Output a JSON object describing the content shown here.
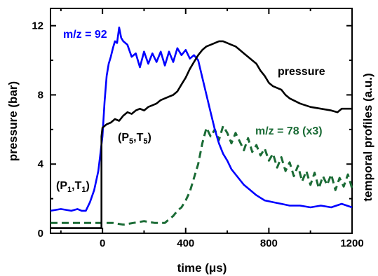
{
  "chart_data": {
    "type": "line",
    "xlabel": "time (μs)",
    "ylabel": "pressure (bar)",
    "y2label": "temporal profiles (a.u.)",
    "xlim": [
      -250,
      1200
    ],
    "ylim": [
      0,
      13
    ],
    "x_ticks": [
      0,
      400,
      800,
      1200
    ],
    "y_ticks": [
      0,
      4,
      8,
      12
    ],
    "grid": false,
    "series": [
      {
        "name": "m/z = 92",
        "color": "#0000ff",
        "style": "solid",
        "x": [
          -250,
          -200,
          -150,
          -120,
          -100,
          -80,
          -60,
          -40,
          -20,
          0,
          10,
          20,
          30,
          40,
          50,
          60,
          70,
          80,
          90,
          100,
          120,
          140,
          160,
          180,
          200,
          220,
          240,
          260,
          280,
          300,
          320,
          340,
          360,
          380,
          400,
          420,
          440,
          460,
          480,
          500,
          520,
          540,
          560,
          580,
          600,
          620,
          640,
          660,
          680,
          700,
          740,
          780,
          820,
          860,
          900,
          950,
          1000,
          1050,
          1100,
          1150,
          1200
        ],
        "y": [
          1.3,
          1.4,
          1.3,
          1.4,
          1.3,
          1.3,
          1.8,
          2.5,
          3.6,
          5.6,
          7.6,
          9.1,
          9.8,
          10.2,
          10.7,
          11.1,
          11.0,
          11.9,
          11.3,
          11.1,
          10.9,
          10.2,
          10.4,
          9.6,
          10.5,
          9.8,
          10.4,
          9.9,
          10.5,
          9.7,
          10.5,
          9.9,
          10.7,
          10.3,
          10.6,
          10.1,
          10.3,
          10.0,
          9.0,
          8.0,
          7.0,
          6.0,
          5.2,
          4.6,
          4.2,
          3.7,
          3.4,
          3.1,
          2.8,
          2.6,
          2.2,
          1.9,
          1.8,
          1.7,
          1.6,
          1.6,
          1.5,
          1.6,
          1.5,
          1.7,
          1.5
        ]
      },
      {
        "name": "pressure",
        "color": "#000000",
        "style": "solid",
        "x": [
          -250,
          -5,
          -5,
          0,
          20,
          40,
          60,
          80,
          100,
          120,
          140,
          160,
          180,
          200,
          220,
          240,
          260,
          280,
          300,
          320,
          340,
          360,
          380,
          400,
          420,
          440,
          460,
          480,
          500,
          520,
          540,
          560,
          580,
          600,
          620,
          640,
          660,
          680,
          700,
          720,
          740,
          760,
          780,
          800,
          820,
          840,
          860,
          880,
          900,
          950,
          1000,
          1050,
          1100,
          1130,
          1150,
          1180,
          1200
        ],
        "y": [
          0.3,
          0.3,
          5.6,
          6.1,
          6.3,
          6.4,
          6.6,
          6.5,
          6.8,
          7.0,
          6.9,
          7.1,
          7.2,
          7.1,
          7.3,
          7.4,
          7.5,
          7.7,
          7.8,
          7.9,
          8.0,
          8.2,
          8.6,
          9.0,
          9.5,
          9.9,
          10.3,
          10.6,
          10.8,
          10.9,
          11.0,
          11.1,
          11.1,
          11.0,
          10.9,
          10.8,
          10.6,
          10.4,
          10.2,
          10.0,
          9.8,
          9.4,
          9.1,
          8.7,
          8.5,
          8.4,
          8.3,
          8.0,
          7.8,
          7.5,
          7.3,
          7.2,
          7.1,
          7.0,
          7.2,
          7.2,
          7.2
        ]
      },
      {
        "name": "m/z = 78 (x3)",
        "color": "#1a6b35",
        "style": "dashed",
        "x": [
          -250,
          -150,
          -50,
          0,
          50,
          100,
          150,
          200,
          250,
          300,
          320,
          340,
          360,
          380,
          400,
          420,
          440,
          460,
          480,
          500,
          520,
          540,
          560,
          580,
          600,
          620,
          640,
          660,
          680,
          700,
          720,
          740,
          760,
          780,
          800,
          820,
          840,
          860,
          880,
          900,
          920,
          940,
          960,
          980,
          1000,
          1020,
          1040,
          1060,
          1080,
          1100,
          1120,
          1140,
          1160,
          1180,
          1200
        ],
        "y": [
          0.6,
          0.6,
          0.6,
          0.6,
          0.6,
          0.5,
          0.6,
          0.7,
          0.6,
          0.6,
          0.8,
          1.0,
          1.3,
          1.5,
          1.9,
          2.4,
          3.2,
          4.0,
          5.2,
          6.1,
          5.6,
          6.0,
          5.4,
          6.2,
          5.8,
          5.2,
          5.8,
          5.3,
          4.8,
          5.5,
          4.7,
          5.1,
          4.5,
          4.9,
          4.2,
          4.6,
          3.8,
          4.4,
          3.6,
          4.1,
          3.3,
          3.9,
          3.0,
          3.6,
          2.8,
          3.5,
          2.6,
          3.3,
          2.8,
          3.4,
          2.5,
          3.2,
          2.7,
          3.4,
          2.6
        ]
      }
    ],
    "annotations": [
      {
        "id": "mz92",
        "text": "m/z = 92",
        "color": "#0000ff"
      },
      {
        "id": "pressure",
        "text": "pressure",
        "color": "#000000"
      },
      {
        "id": "mz78",
        "text": "m/z = 78 (x3)",
        "color": "#1a6b35"
      },
      {
        "id": "p5t5",
        "text": "(P5,T5)",
        "color": "#000000"
      },
      {
        "id": "p1t1",
        "text": "(P1,T1)",
        "color": "#000000"
      }
    ]
  }
}
